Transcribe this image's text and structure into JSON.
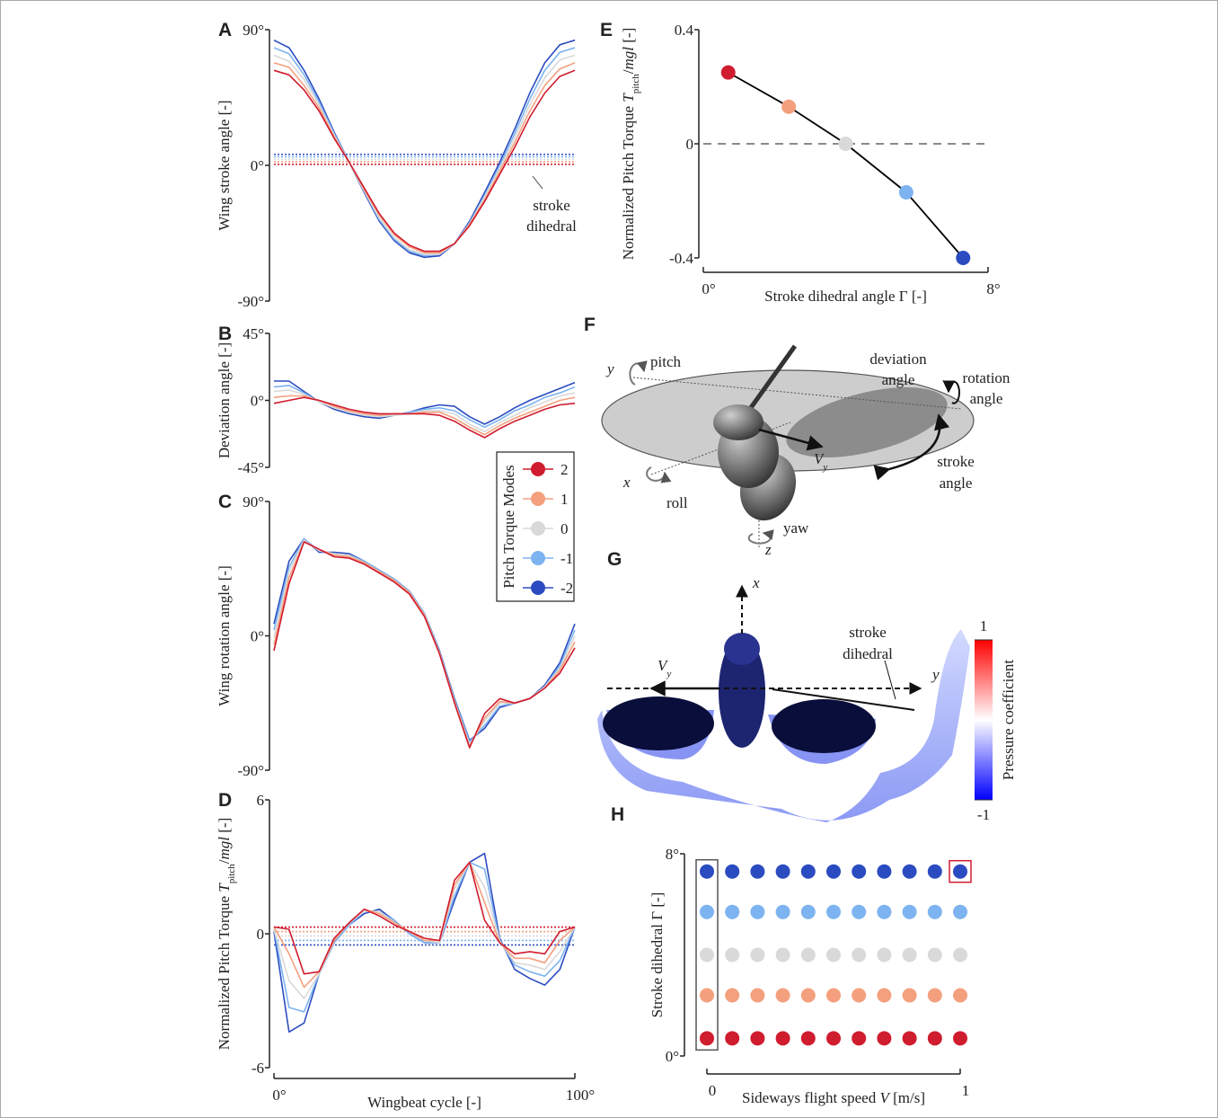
{
  "chart_data": [
    {
      "type": "line",
      "panel_label": "A",
      "ylabel": "Wing stroke angle [-]",
      "x": [
        0,
        5,
        10,
        15,
        20,
        25,
        30,
        35,
        40,
        45,
        50,
        55,
        60,
        65,
        70,
        75,
        80,
        85,
        90,
        95,
        100
      ],
      "xlim": [
        0,
        100
      ],
      "ylim": [
        -90,
        90
      ],
      "yticks": [
        {
          "value": 90,
          "label": "90°"
        },
        {
          "value": 0,
          "label": "0°"
        },
        {
          "value": -90,
          "label": "-90°"
        }
      ],
      "legend": {
        "title": "Pitch Torque Modes"
      },
      "series": [
        {
          "name": "2",
          "color": "#d01c2f",
          "values": [
            63,
            60,
            50,
            36,
            18,
            2,
            -15,
            -32,
            -45,
            -53,
            -57,
            -57,
            -52,
            -40,
            -24,
            -6,
            12,
            32,
            48,
            59,
            63
          ]
        },
        {
          "name": "1",
          "color": "#f4a07e",
          "values": [
            68,
            65,
            53,
            38,
            19,
            2,
            -16,
            -33,
            -46,
            -54,
            -58,
            -58,
            -52,
            -39,
            -23,
            -4,
            15,
            36,
            53,
            64,
            68
          ]
        },
        {
          "name": "0",
          "color": "#d9d9d9",
          "values": [
            73,
            69,
            57,
            40,
            20,
            2,
            -17,
            -35,
            -48,
            -56,
            -59,
            -59,
            -52,
            -39,
            -21,
            -2,
            18,
            40,
            58,
            70,
            73
          ]
        },
        {
          "name": "-1",
          "color": "#7db3f0",
          "values": [
            78,
            74,
            60,
            42,
            21,
            2,
            -17,
            -36,
            -49,
            -57,
            -60,
            -59,
            -52,
            -38,
            -20,
            0,
            21,
            44,
            63,
            75,
            78
          ]
        },
        {
          "name": "-2",
          "color": "#2b4cc0",
          "values": [
            83,
            78,
            63,
            44,
            22,
            2,
            -18,
            -37,
            -50,
            -58,
            -61,
            -60,
            -52,
            -37,
            -18,
            2,
            24,
            48,
            68,
            80,
            83
          ]
        }
      ],
      "reference_lines": [
        0.7,
        2.4,
        4.0,
        5.7,
        7.3
      ],
      "reference_style": "dotted",
      "annotation": [
        "stroke",
        "dihedral"
      ]
    },
    {
      "type": "line",
      "panel_label": "B",
      "ylabel": "Deviation angle [-]",
      "x": [
        0,
        5,
        10,
        15,
        20,
        25,
        30,
        35,
        40,
        45,
        50,
        55,
        60,
        65,
        70,
        75,
        80,
        85,
        90,
        95,
        100
      ],
      "xlim": [
        0,
        100
      ],
      "ylim": [
        -45,
        45
      ],
      "yticks": [
        {
          "value": 45,
          "label": "45°"
        },
        {
          "value": 0,
          "label": "0°"
        },
        {
          "value": -45,
          "label": "-45°"
        }
      ],
      "series": [
        {
          "color": "#d01c2f",
          "values": [
            -2,
            0,
            2,
            0,
            -3,
            -6,
            -8,
            -9,
            -9,
            -9,
            -9,
            -10,
            -14,
            -20,
            -25,
            -19,
            -14,
            -10,
            -6,
            -3,
            -2
          ]
        },
        {
          "color": "#f4a07e",
          "values": [
            2,
            3,
            3,
            0,
            -4,
            -7,
            -9,
            -10,
            -9,
            -9,
            -8,
            -8,
            -12,
            -18,
            -23,
            -17,
            -12,
            -8,
            -4,
            0,
            2
          ]
        },
        {
          "color": "#d9d9d9",
          "values": [
            6,
            7,
            4,
            -1,
            -5,
            -8,
            -10,
            -11,
            -10,
            -9,
            -7,
            -7,
            -9,
            -16,
            -21,
            -15,
            -10,
            -5,
            -1,
            3,
            5
          ]
        },
        {
          "color": "#7db3f0",
          "values": [
            9,
            10,
            5,
            -1,
            -5,
            -8,
            -10,
            -11,
            -10,
            -8,
            -6,
            -5,
            -7,
            -13,
            -18,
            -13,
            -7,
            -3,
            2,
            5,
            9
          ]
        },
        {
          "color": "#2b4cc0",
          "values": [
            13,
            13,
            6,
            -1,
            -6,
            -9,
            -11,
            -12,
            -10,
            -8,
            -5,
            -3,
            -4,
            -11,
            -16,
            -11,
            -5,
            0,
            4,
            8,
            12
          ]
        }
      ]
    },
    {
      "type": "line",
      "panel_label": "C",
      "ylabel": "Wing rotation angle [-]",
      "x": [
        0,
        5,
        10,
        15,
        20,
        25,
        30,
        35,
        40,
        45,
        50,
        55,
        60,
        65,
        70,
        75,
        80,
        85,
        90,
        95,
        100
      ],
      "xlim": [
        0,
        100
      ],
      "ylim": [
        -90,
        90
      ],
      "yticks": [
        {
          "value": 90,
          "label": "90°"
        },
        {
          "value": 0,
          "label": "0°"
        },
        {
          "value": -90,
          "label": "-90°"
        }
      ],
      "series": [
        {
          "color": "#d01c2f",
          "values": [
            -10,
            35,
            63,
            58,
            53,
            52,
            48,
            42,
            36,
            28,
            13,
            -12,
            -45,
            -75,
            -52,
            -42,
            -45,
            -42,
            -35,
            -25,
            -8
          ]
        },
        {
          "color": "#f4a07e",
          "values": [
            -6,
            39,
            63,
            58,
            54,
            53,
            49,
            43,
            37,
            29,
            14,
            -12,
            -44,
            -74,
            -55,
            -44,
            -45,
            -42,
            -35,
            -23,
            -4
          ]
        },
        {
          "color": "#d9d9d9",
          "values": [
            -1,
            43,
            64,
            57,
            55,
            54,
            49,
            43,
            37,
            29,
            14,
            -11,
            -44,
            -73,
            -57,
            -45,
            -45,
            -42,
            -34,
            -22,
            0
          ]
        },
        {
          "color": "#7db3f0",
          "values": [
            4,
            46,
            65,
            57,
            55,
            54,
            50,
            44,
            38,
            30,
            15,
            -11,
            -43,
            -71,
            -60,
            -47,
            -45,
            -42,
            -34,
            -20,
            4
          ]
        },
        {
          "color": "#2b4cc0",
          "values": [
            8,
            50,
            65,
            56,
            56,
            55,
            50,
            44,
            38,
            30,
            15,
            -10,
            -42,
            -70,
            -62,
            -48,
            -45,
            -42,
            -33,
            -18,
            8
          ]
        }
      ]
    },
    {
      "type": "line",
      "panel_label": "D",
      "ylabel": [
        {
          "text": "Normalized Pitch Torque "
        },
        {
          "text": "T",
          "style": "italic"
        },
        {
          "text": "pitch",
          "style": "sub"
        },
        {
          "text": "/"
        },
        {
          "text": "mgl",
          "style": "italic"
        },
        {
          "text": " [-]"
        }
      ],
      "xlabel": "Wingbeat cycle [-]",
      "x": [
        0,
        5,
        10,
        15,
        20,
        25,
        30,
        35,
        40,
        45,
        50,
        55,
        60,
        65,
        70,
        75,
        80,
        85,
        90,
        95,
        100
      ],
      "xlim": [
        0,
        100
      ],
      "xticks": [
        {
          "value": 0,
          "label": "0°"
        },
        {
          "value": 100,
          "label": "100°"
        }
      ],
      "ylim": [
        -6,
        6
      ],
      "yticks": [
        6,
        0,
        -6
      ],
      "series": [
        {
          "color": "#d01c2f",
          "values": [
            0.3,
            0.2,
            -1.8,
            -1.7,
            -0.2,
            0.5,
            1.1,
            0.8,
            0.4,
            0.1,
            -0.2,
            -0.3,
            2.4,
            3.2,
            0.6,
            -0.4,
            -0.9,
            -0.8,
            -0.9,
            0.1,
            0.3
          ]
        },
        {
          "color": "#f4a07e",
          "values": [
            0.3,
            -0.9,
            -2.4,
            -1.7,
            -0.3,
            0.5,
            1.1,
            0.9,
            0.5,
            0.1,
            -0.3,
            -0.3,
            2.2,
            3.2,
            1.4,
            -0.4,
            -1.1,
            -1.1,
            -1.3,
            -0.3,
            0.3
          ]
        },
        {
          "color": "#d9d9d9",
          "values": [
            0.2,
            -2.1,
            -2.9,
            -1.8,
            -0.3,
            0.5,
            1.0,
            1.0,
            0.5,
            0.1,
            -0.3,
            -0.4,
            2.0,
            3.2,
            2.1,
            -0.3,
            -1.3,
            -1.4,
            -1.6,
            -0.8,
            0.3
          ]
        },
        {
          "color": "#7db3f0",
          "values": [
            0.2,
            -3.3,
            -3.5,
            -1.8,
            -0.4,
            0.4,
            1.0,
            1.0,
            0.6,
            0.0,
            -0.4,
            -0.4,
            1.7,
            3.2,
            2.9,
            -0.3,
            -1.4,
            -1.7,
            -1.9,
            -1.2,
            0.3
          ]
        },
        {
          "color": "#2b4cc0",
          "values": [
            0.1,
            -4.4,
            -4.0,
            -1.8,
            -0.4,
            0.4,
            0.9,
            1.1,
            0.6,
            0.0,
            -0.4,
            -0.4,
            1.5,
            3.2,
            3.6,
            -0.2,
            -1.6,
            -2.0,
            -2.3,
            -1.6,
            0.3
          ]
        }
      ],
      "reference_lines": [
        0.3,
        0.1,
        -0.1,
        -0.3,
        -0.5
      ],
      "reference_style": "dotted"
    },
    {
      "type": "line",
      "panel_label": "E",
      "ylabel": [
        {
          "text": "Normalized Pitch Torque "
        },
        {
          "text": "T",
          "style": "italic"
        },
        {
          "text": "pitch",
          "style": "sub"
        },
        {
          "text": "/"
        },
        {
          "text": "mgl",
          "style": "italic"
        },
        {
          "text": " [-]"
        }
      ],
      "xlabel": "Stroke dihedral angle Γ [-]",
      "x": [
        0.7,
        2.4,
        4.0,
        5.7,
        7.3
      ],
      "xlim": [
        0,
        8
      ],
      "xticks": [
        {
          "value": 0,
          "label": "0°"
        },
        {
          "value": 8,
          "label": "8°"
        }
      ],
      "ylim": [
        -0.4,
        0.4
      ],
      "yticks": [
        0.4,
        0,
        -0.4
      ],
      "series": [
        {
          "color": "#000000",
          "values": [
            0.25,
            0.13,
            0,
            -0.17,
            -0.4
          ],
          "point_colors": [
            "#d01c2f",
            "#f4a07e",
            "#d9d9d9",
            "#7db3f0",
            "#2b4cc0"
          ]
        }
      ],
      "reference_lines": [
        0
      ],
      "reference_style": "dashed"
    },
    {
      "type": "scatter",
      "panel_label": "H",
      "ylabel": "Stroke dihedral Γ [-]",
      "xlabel": [
        {
          "text": "Sideways flight speed "
        },
        {
          "text": "V",
          "style": "italic"
        },
        {
          "text": " [m/s]"
        }
      ],
      "x": [
        0,
        0.1,
        0.2,
        0.3,
        0.4,
        0.5,
        0.6,
        0.7,
        0.8,
        0.9,
        1
      ],
      "xlim": [
        0,
        1
      ],
      "xticks": [
        0,
        1
      ],
      "ylim": [
        0,
        8
      ],
      "yticks": [
        {
          "value": 0,
          "label": "0°"
        },
        {
          "value": 8,
          "label": "8°"
        }
      ],
      "series": [
        {
          "color": "#d01c2f",
          "values": [
            0.7,
            0.7,
            0.7,
            0.7,
            0.7,
            0.7,
            0.7,
            0.7,
            0.7,
            0.7,
            0.7
          ]
        },
        {
          "color": "#f4a07e",
          "values": [
            2.4,
            2.4,
            2.4,
            2.4,
            2.4,
            2.4,
            2.4,
            2.4,
            2.4,
            2.4,
            2.4
          ]
        },
        {
          "color": "#d9d9d9",
          "values": [
            4.0,
            4.0,
            4.0,
            4.0,
            4.0,
            4.0,
            4.0,
            4.0,
            4.0,
            4.0,
            4.0
          ]
        },
        {
          "color": "#7db3f0",
          "values": [
            5.7,
            5.7,
            5.7,
            5.7,
            5.7,
            5.7,
            5.7,
            5.7,
            5.7,
            5.7,
            5.7
          ]
        },
        {
          "color": "#2b4cc0",
          "values": [
            7.3,
            7.3,
            7.3,
            7.3,
            7.3,
            7.3,
            7.3,
            7.3,
            7.3,
            7.3,
            7.3
          ]
        }
      ]
    }
  ],
  "figure_f": {
    "panel_label": "F",
    "pitch": "pitch",
    "y": "y",
    "deviation": [
      "deviation",
      "angle"
    ],
    "rotation": [
      "rotation",
      "angle"
    ],
    "v": "V",
    "v_sub": "y",
    "stroke": [
      "stroke",
      "angle"
    ],
    "x": "x",
    "roll": "roll",
    "yaw": "yaw",
    "z": "z"
  },
  "figure_g": {
    "panel_label": "G",
    "x": "x",
    "y": "y",
    "v": "V",
    "v_sub": "y",
    "stroke_dihedral": [
      "stroke",
      "dihedral"
    ],
    "colorbar": {
      "label": "Pressure coefficient",
      "lim": [
        -1,
        1
      ],
      "ticks": [
        1,
        -1
      ]
    }
  }
}
